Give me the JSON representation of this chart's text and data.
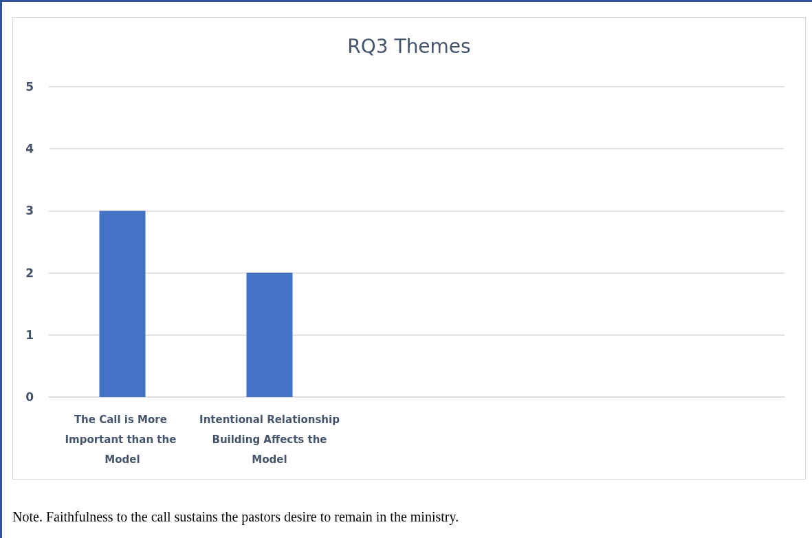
{
  "chart_data": {
    "type": "bar",
    "title": "RQ3 Themes",
    "categories": [
      "The Call is More Important than the Model",
      "Intentional Relationship Building Affects the Model",
      null,
      null,
      null
    ],
    "values": [
      3,
      2,
      null,
      null,
      null
    ],
    "color": "#4472c4",
    "ylim": [
      0,
      5
    ],
    "yticks": [
      0,
      1,
      2,
      3,
      4,
      5
    ],
    "grid": "y",
    "annotations": [
      "Note. Faithfulness to the call sustains the pastors desire to remain in the ministry."
    ]
  }
}
